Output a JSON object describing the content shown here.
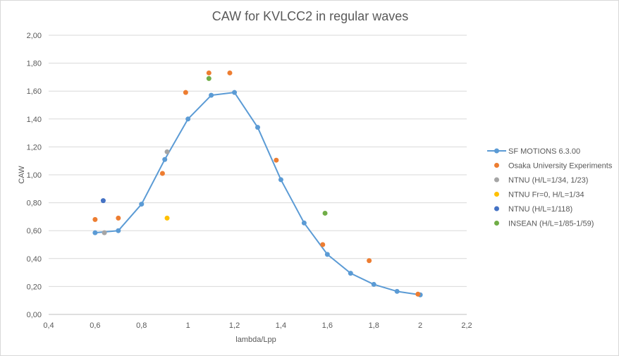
{
  "chart_data": {
    "type": "scatter",
    "title": "CAW for KVLCC2 in regular waves",
    "xlabel": "lambda/Lpp",
    "ylabel": "CAW",
    "xlim": [
      0.4,
      2.2
    ],
    "ylim": [
      0.0,
      2.0
    ],
    "x_ticks": [
      "0,4",
      "0,6",
      "0,8",
      "1",
      "1,2",
      "1,4",
      "1,6",
      "1,8",
      "2",
      "2,2"
    ],
    "x_tick_values": [
      0.4,
      0.6,
      0.8,
      1.0,
      1.2,
      1.4,
      1.6,
      1.8,
      2.0,
      2.2
    ],
    "y_ticks": [
      "0,00",
      "0,20",
      "0,40",
      "0,60",
      "0,80",
      "1,00",
      "1,20",
      "1,40",
      "1,60",
      "1,80",
      "2,00"
    ],
    "y_tick_values": [
      0.0,
      0.2,
      0.4,
      0.6,
      0.8,
      1.0,
      1.2,
      1.4,
      1.6,
      1.8,
      2.0
    ],
    "grid": "horizontal",
    "legend_position": "right",
    "series": [
      {
        "name": "SF MOTIONS 6.3.00",
        "kind": "line-markers",
        "color": "#5b9bd5",
        "x": [
          0.6,
          0.7,
          0.8,
          0.9,
          1.0,
          1.1,
          1.2,
          1.3,
          1.4,
          1.5,
          1.6,
          1.7,
          1.8,
          1.9,
          2.0
        ],
        "y": [
          0.585,
          0.6,
          0.79,
          1.11,
          1.4,
          1.57,
          1.59,
          1.34,
          0.965,
          0.655,
          0.43,
          0.295,
          0.215,
          0.165,
          0.14
        ]
      },
      {
        "name": "Osaka University Experiments",
        "kind": "points",
        "color": "#ed7d31",
        "x": [
          0.6,
          0.7,
          0.89,
          0.99,
          1.09,
          1.18,
          1.38,
          1.58,
          1.78,
          1.99
        ],
        "y": [
          0.68,
          0.69,
          1.01,
          1.59,
          1.73,
          1.73,
          1.105,
          0.5,
          0.385,
          0.145
        ]
      },
      {
        "name": "NTNU (H/L=1/34, 1/23)",
        "kind": "points",
        "color": "#a5a5a5",
        "x": [
          0.64,
          0.91
        ],
        "y": [
          0.585,
          1.165
        ]
      },
      {
        "name": "NTNU Fr=0, H/L=1/34",
        "kind": "points",
        "color": "#ffc000",
        "x": [
          0.91
        ],
        "y": [
          0.69
        ]
      },
      {
        "name": "NTNU (H/L=1/118)",
        "kind": "points",
        "color": "#4472c4",
        "x": [
          0.635
        ],
        "y": [
          0.815
        ]
      },
      {
        "name": "INSEAN (H/L=1/85-1/59)",
        "kind": "points",
        "color": "#70ad47",
        "x": [
          1.09,
          1.59
        ],
        "y": [
          1.69,
          0.725
        ]
      }
    ]
  }
}
